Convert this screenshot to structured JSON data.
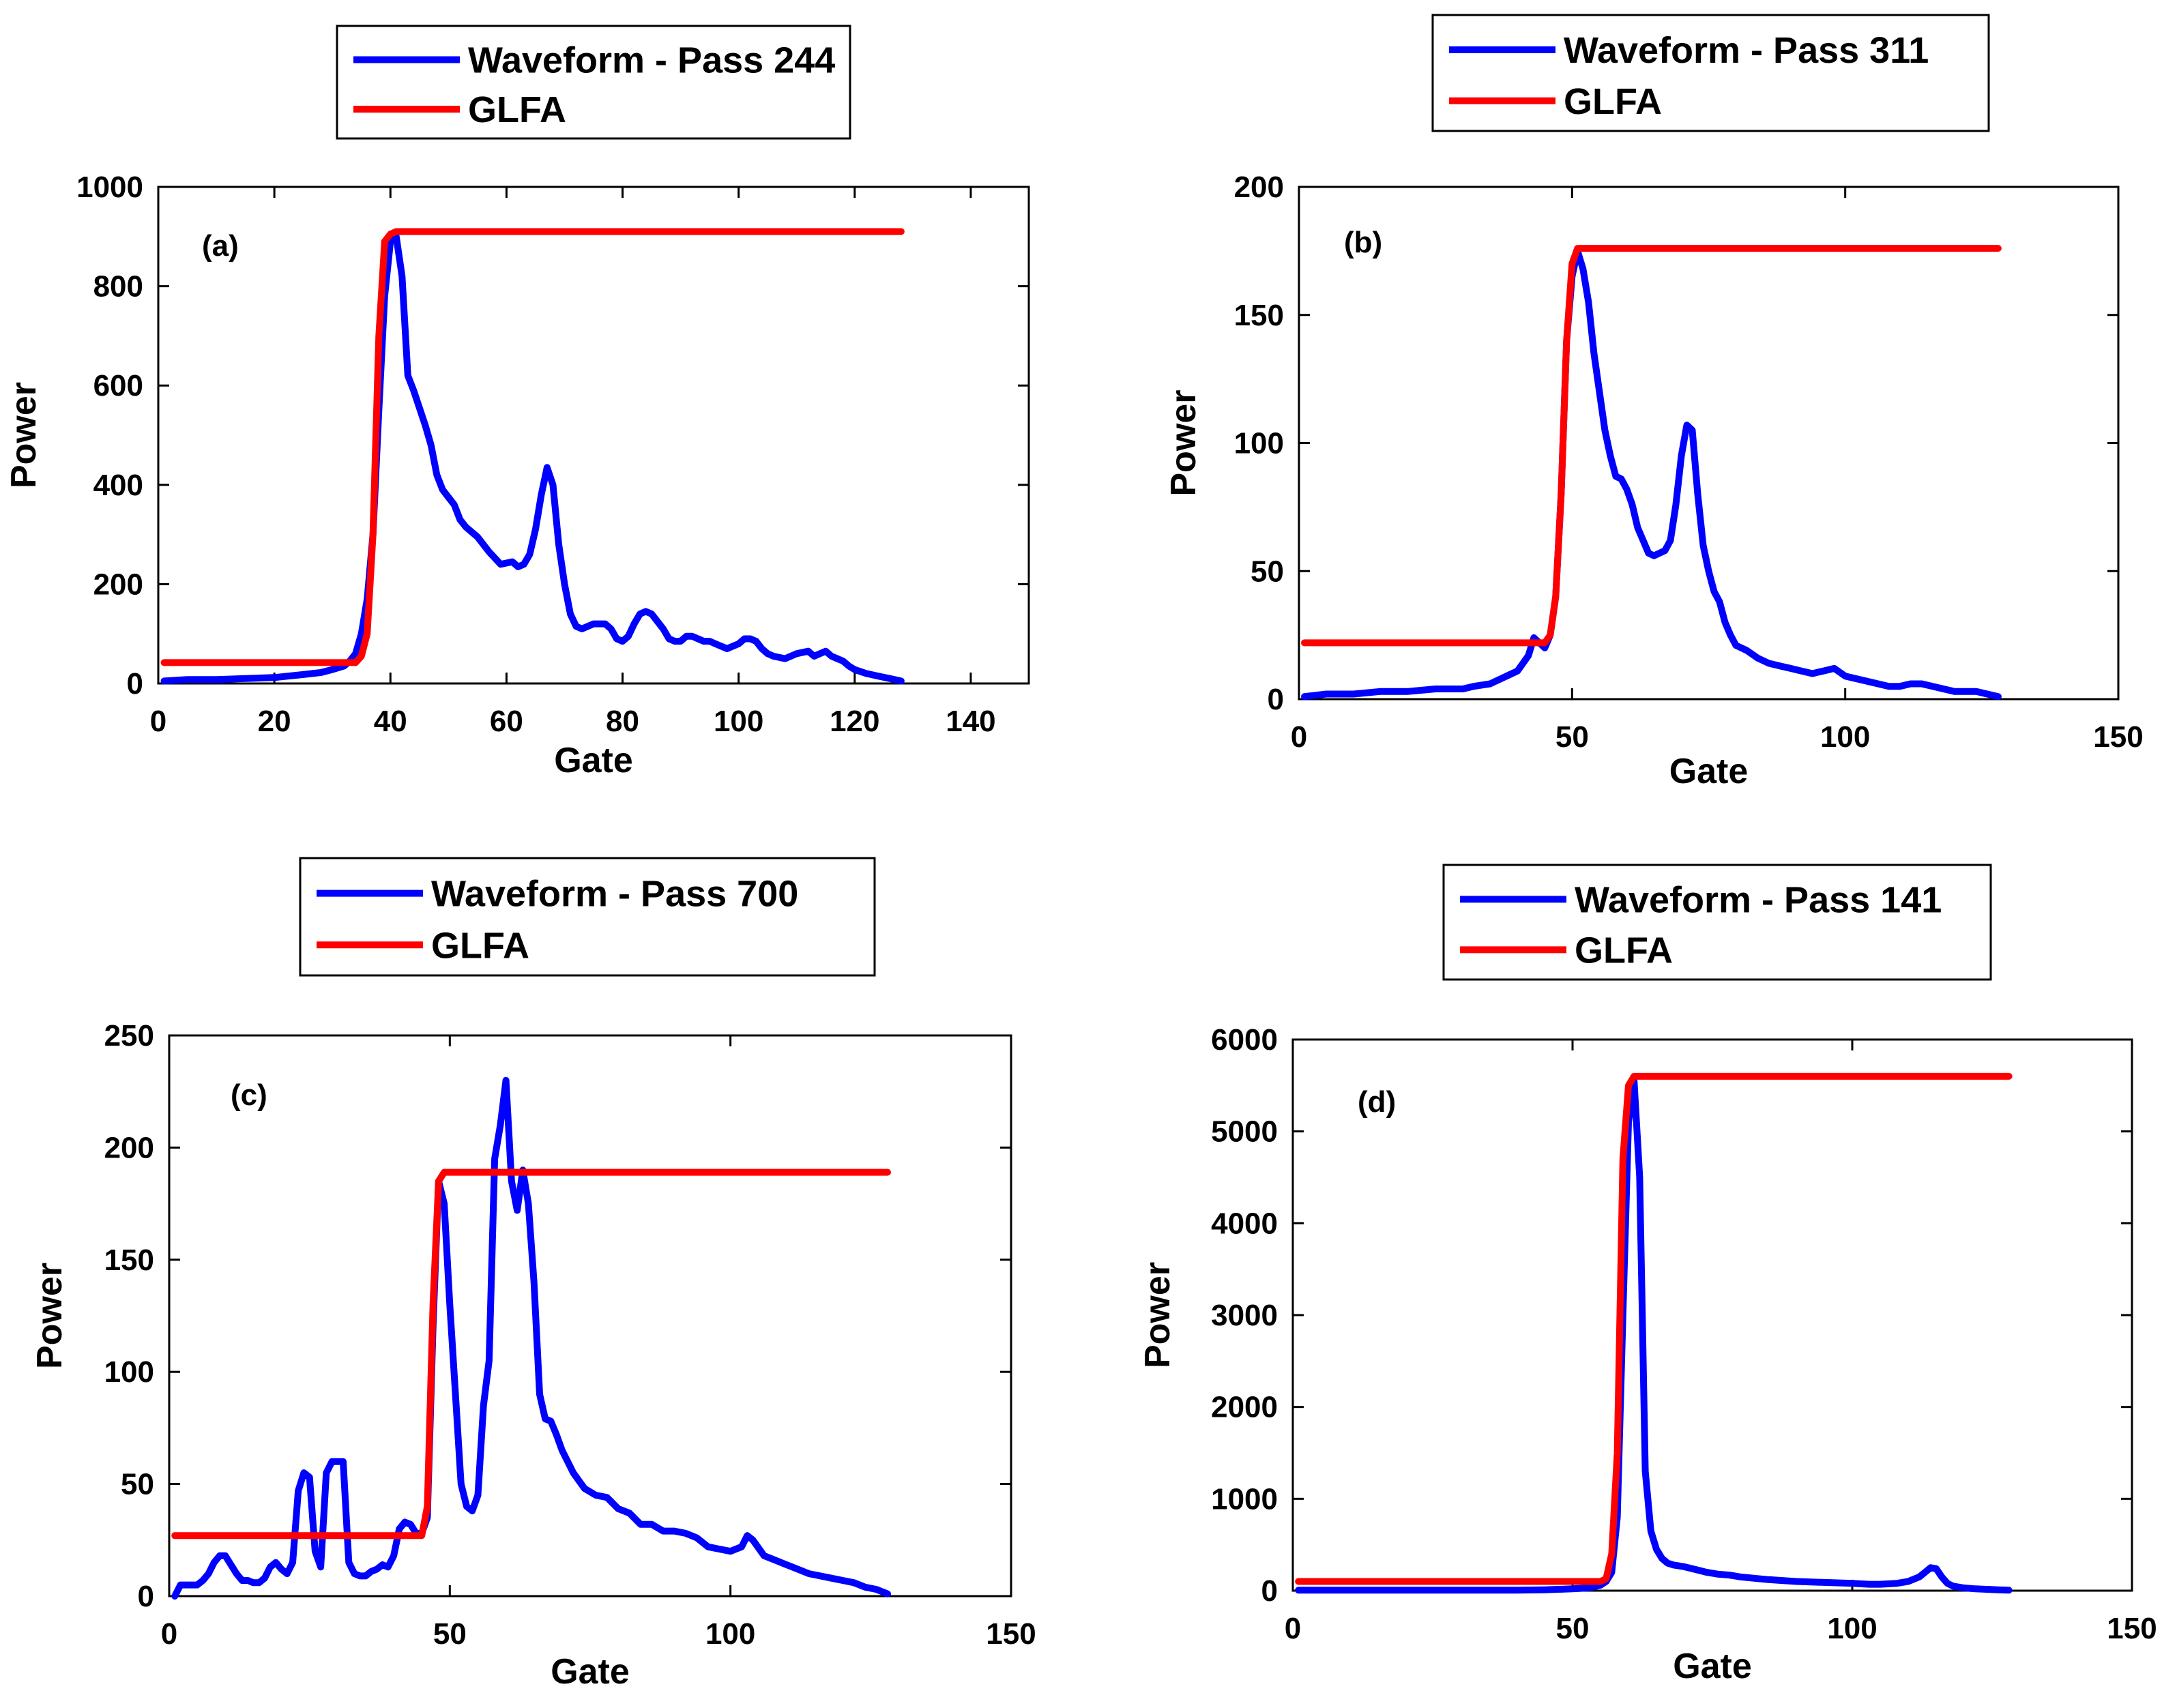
{
  "figure": {
    "panel_count": 4
  },
  "colors": {
    "waveform": "#0000ff",
    "glfa": "#ff0000",
    "axis": "#000000",
    "background": "#ffffff"
  },
  "chart_data": [
    {
      "type": "line",
      "panel_label": "(a)",
      "xlabel": "Gate",
      "ylabel": "Power",
      "xlim": [
        0,
        150
      ],
      "ylim": [
        0,
        1000
      ],
      "xticks": [
        0,
        20,
        40,
        60,
        80,
        100,
        120,
        140
      ],
      "yticks": [
        0,
        200,
        400,
        600,
        800,
        1000
      ],
      "legend": {
        "placement": "top",
        "entries": [
          "Waveform - Pass 244",
          "GLFA"
        ]
      },
      "series": [
        {
          "name": "Waveform - Pass 244",
          "color": "#0000ff",
          "x": [
            1,
            5,
            10,
            20,
            25,
            28,
            30,
            32,
            33,
            34,
            35,
            36,
            37,
            38,
            39,
            40,
            41,
            42,
            43,
            44,
            46,
            47,
            48,
            49,
            50,
            51,
            52,
            53,
            55,
            57,
            59,
            61,
            62,
            63,
            64,
            65,
            66,
            67,
            68,
            69,
            70,
            71,
            72,
            73,
            75,
            77,
            78,
            79,
            80,
            81,
            82,
            83,
            84,
            85,
            86,
            87,
            88,
            89,
            90,
            91,
            92,
            93,
            94,
            95,
            96,
            97,
            98,
            99,
            100,
            101,
            102,
            103,
            104,
            105,
            106,
            108,
            110,
            112,
            113,
            114,
            115,
            116,
            117,
            118,
            119,
            120,
            122,
            124,
            126,
            128
          ],
          "y": [
            5,
            8,
            8,
            12,
            18,
            22,
            28,
            35,
            45,
            60,
            100,
            170,
            300,
            550,
            780,
            890,
            900,
            820,
            620,
            590,
            520,
            480,
            420,
            390,
            375,
            360,
            330,
            315,
            295,
            265,
            240,
            245,
            235,
            240,
            260,
            310,
            380,
            435,
            400,
            280,
            200,
            140,
            115,
            110,
            120,
            120,
            110,
            90,
            85,
            95,
            120,
            140,
            145,
            140,
            125,
            110,
            90,
            85,
            85,
            95,
            95,
            90,
            85,
            85,
            80,
            75,
            70,
            75,
            80,
            90,
            90,
            85,
            70,
            60,
            55,
            50,
            60,
            65,
            55,
            60,
            65,
            55,
            50,
            45,
            35,
            28,
            20,
            15,
            10,
            5
          ]
        },
        {
          "name": "GLFA",
          "color": "#ff0000",
          "x": [
            1,
            34,
            35,
            36,
            37,
            38,
            39,
            40,
            41,
            128
          ],
          "y": [
            42,
            42,
            55,
            100,
            300,
            700,
            890,
            905,
            910,
            910
          ]
        }
      ]
    },
    {
      "type": "line",
      "panel_label": "(b)",
      "xlabel": "Gate",
      "ylabel": "Power",
      "xlim": [
        0,
        150
      ],
      "ylim": [
        0,
        200
      ],
      "xticks": [
        0,
        50,
        100,
        150
      ],
      "yticks": [
        0,
        50,
        100,
        150,
        200
      ],
      "legend": {
        "placement": "top",
        "entries": [
          "Waveform - Pass 311",
          "GLFA"
        ]
      },
      "series": [
        {
          "name": "Waveform - Pass 311",
          "color": "#0000ff",
          "x": [
            1,
            5,
            10,
            15,
            18,
            20,
            25,
            30,
            32,
            35,
            38,
            40,
            42,
            43,
            44,
            45,
            46,
            47,
            48,
            49,
            50,
            51,
            52,
            53,
            54,
            55,
            56,
            57,
            58,
            59,
            60,
            61,
            62,
            63,
            64,
            65,
            66,
            67,
            68,
            69,
            70,
            71,
            72,
            73,
            74,
            75,
            76,
            77,
            78,
            79,
            80,
            81,
            82,
            84,
            86,
            88,
            90,
            92,
            94,
            96,
            98,
            100,
            102,
            104,
            106,
            108,
            110,
            112,
            114,
            116,
            118,
            120,
            122,
            124,
            126,
            128
          ],
          "y": [
            1,
            2,
            2,
            3,
            3,
            3,
            4,
            4,
            5,
            6,
            9,
            11,
            17,
            24,
            22,
            20,
            25,
            40,
            80,
            140,
            165,
            175,
            168,
            155,
            135,
            120,
            105,
            95,
            87,
            86,
            82,
            76,
            67,
            62,
            57,
            56,
            57,
            58,
            62,
            76,
            95,
            107,
            105,
            80,
            60,
            50,
            42,
            38,
            30,
            25,
            21,
            20,
            19,
            16,
            14,
            13,
            12,
            11,
            10,
            11,
            12,
            9,
            8,
            7,
            6,
            5,
            5,
            6,
            6,
            5,
            4,
            3,
            3,
            3,
            2,
            1
          ]
        },
        {
          "name": "GLFA",
          "color": "#ff0000",
          "x": [
            1,
            45,
            46,
            47,
            48,
            49,
            50,
            51,
            52,
            128
          ],
          "y": [
            22,
            22,
            25,
            40,
            80,
            140,
            170,
            176,
            176,
            176
          ]
        }
      ]
    },
    {
      "type": "line",
      "panel_label": "(c)",
      "xlabel": "Gate",
      "ylabel": "Power",
      "xlim": [
        0,
        150
      ],
      "ylim": [
        0,
        250
      ],
      "xticks": [
        0,
        50,
        100,
        150
      ],
      "yticks": [
        0,
        50,
        100,
        150,
        200,
        250
      ],
      "legend": {
        "placement": "top",
        "entries": [
          "Waveform - Pass 700",
          "GLFA"
        ]
      },
      "series": [
        {
          "name": "Waveform - Pass 700",
          "color": "#0000ff",
          "x": [
            1,
            2,
            3,
            4,
            5,
            6,
            7,
            8,
            9,
            10,
            11,
            12,
            13,
            14,
            15,
            16,
            17,
            18,
            19,
            20,
            21,
            22,
            23,
            24,
            25,
            26,
            27,
            28,
            29,
            30,
            31,
            32,
            33,
            34,
            35,
            36,
            37,
            38,
            39,
            40,
            41,
            42,
            43,
            44,
            45,
            46,
            47,
            48,
            49,
            50,
            51,
            52,
            53,
            54,
            55,
            56,
            57,
            58,
            59,
            60,
            61,
            62,
            63,
            64,
            65,
            66,
            67,
            68,
            69,
            70,
            72,
            74,
            76,
            78,
            80,
            82,
            84,
            86,
            88,
            90,
            92,
            94,
            96,
            98,
            100,
            102,
            103,
            104,
            106,
            108,
            110,
            112,
            114,
            116,
            118,
            120,
            122,
            124,
            126,
            128
          ],
          "y": [
            0,
            5,
            5,
            5,
            5,
            7,
            10,
            15,
            18,
            18,
            14,
            10,
            7,
            7,
            6,
            6,
            8,
            13,
            15,
            12,
            10,
            15,
            47,
            55,
            53,
            20,
            13,
            55,
            60,
            60,
            60,
            15,
            10,
            9,
            9,
            11,
            12,
            14,
            13,
            18,
            30,
            33,
            32,
            28,
            28,
            35,
            120,
            185,
            175,
            130,
            90,
            50,
            40,
            38,
            45,
            85,
            105,
            195,
            210,
            230,
            185,
            172,
            190,
            175,
            140,
            90,
            79,
            78,
            72,
            65,
            55,
            48,
            45,
            44,
            39,
            37,
            32,
            32,
            29,
            29,
            28,
            26,
            22,
            21,
            20,
            22,
            27,
            25,
            18,
            16,
            14,
            12,
            10,
            9,
            8,
            7,
            6,
            4,
            3,
            1
          ]
        },
        {
          "name": "GLFA",
          "color": "#ff0000",
          "x": [
            1,
            45,
            46,
            47,
            48,
            49,
            128
          ],
          "y": [
            27,
            27,
            40,
            130,
            185,
            189,
            189
          ]
        }
      ]
    },
    {
      "type": "line",
      "panel_label": "(d)",
      "xlabel": "Gate",
      "ylabel": "Power",
      "xlim": [
        0,
        150
      ],
      "ylim": [
        0,
        6000
      ],
      "xticks": [
        0,
        50,
        100,
        150
      ],
      "yticks": [
        0,
        1000,
        2000,
        3000,
        4000,
        5000,
        6000
      ],
      "legend": {
        "placement": "top",
        "entries": [
          "Waveform - Pass 141",
          "GLFA"
        ]
      },
      "series": [
        {
          "name": "Waveform - Pass 141",
          "color": "#0000ff",
          "x": [
            1,
            10,
            20,
            30,
            40,
            45,
            50,
            53,
            55,
            56,
            57,
            58,
            59,
            60,
            61,
            62,
            63,
            64,
            65,
            66,
            67,
            68,
            69,
            70,
            72,
            74,
            76,
            78,
            80,
            85,
            90,
            95,
            100,
            103,
            105,
            108,
            110,
            112,
            113,
            114,
            115,
            116,
            117,
            118,
            120,
            122,
            124,
            126,
            128
          ],
          "y": [
            5,
            5,
            5,
            5,
            5,
            10,
            20,
            30,
            60,
            100,
            200,
            800,
            3000,
            5100,
            5550,
            4500,
            1300,
            650,
            450,
            350,
            300,
            280,
            270,
            260,
            230,
            200,
            180,
            170,
            150,
            120,
            100,
            90,
            80,
            70,
            70,
            80,
            100,
            150,
            200,
            250,
            240,
            150,
            80,
            50,
            30,
            20,
            15,
            10,
            5
          ]
        },
        {
          "name": "GLFA",
          "color": "#ff0000",
          "x": [
            1,
            55,
            56,
            57,
            58,
            59,
            60,
            61,
            128
          ],
          "y": [
            100,
            100,
            130,
            400,
            1500,
            4700,
            5500,
            5600,
            5600
          ]
        }
      ]
    }
  ]
}
